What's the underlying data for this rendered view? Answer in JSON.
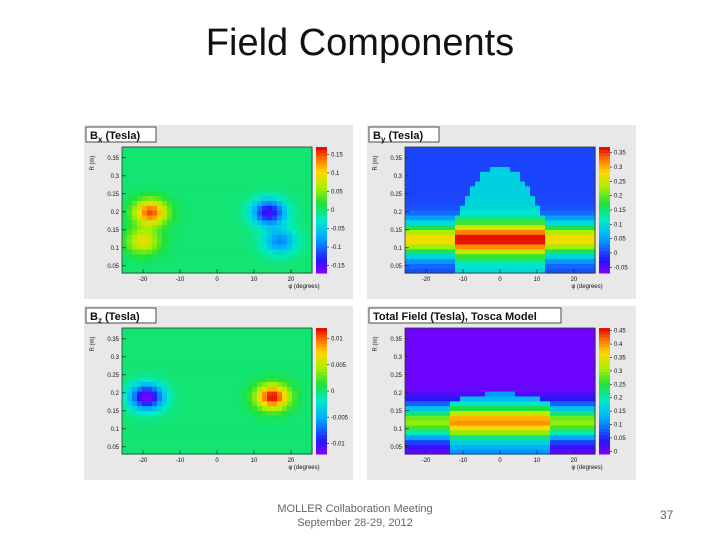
{
  "slide": {
    "title": "Field Components",
    "footer_line1": "MOLLER Collaboration Meeting",
    "footer_line2": "September 28-29, 2012",
    "page_number": "37"
  },
  "chart_data": [
    {
      "type": "heatmap",
      "title": "Bx (Tesla)",
      "title_parts": {
        "base": "B",
        "sub": "x",
        "rest": " (Tesla)"
      },
      "xlabel": "φ (degrees)",
      "ylabel": "R (m)",
      "x_range": [
        -25.7,
        25.7
      ],
      "y_range": [
        0.03,
        0.38
      ],
      "x_ticks": [
        -20,
        -10,
        0,
        10,
        20
      ],
      "y_ticks": [
        0.05,
        0.1,
        0.15,
        0.2,
        0.25,
        0.3,
        0.35
      ],
      "colorbar_range": [
        -0.17,
        0.17
      ],
      "colorbar_ticks": [
        0.15,
        0.1,
        0.05,
        0,
        -0.05,
        -0.1,
        -0.15
      ],
      "colorbar_labels": [
        "0.15",
        "0.1",
        "0.05",
        "0",
        "-0.05",
        "-0.1",
        "-0.15"
      ],
      "features": [
        {
          "kind": "blob",
          "phi": -18,
          "r": 0.2,
          "value": 0.15
        },
        {
          "kind": "blob",
          "phi": -20,
          "r": 0.12,
          "value": 0.09
        },
        {
          "kind": "blob",
          "phi": 14,
          "r": 0.2,
          "value": -0.15
        },
        {
          "kind": "blob",
          "phi": 17,
          "r": 0.12,
          "value": -0.09
        }
      ]
    },
    {
      "type": "heatmap",
      "title": "By (Tesla)",
      "title_parts": {
        "base": "B",
        "sub": "y",
        "rest": " (Tesla)"
      },
      "xlabel": "φ (degrees)",
      "ylabel": "R (m)",
      "x_range": [
        -25.7,
        25.7
      ],
      "y_range": [
        0.03,
        0.38
      ],
      "x_ticks": [
        -20,
        -10,
        0,
        10,
        20
      ],
      "y_ticks": [
        0.05,
        0.1,
        0.15,
        0.2,
        0.25,
        0.3,
        0.35
      ],
      "colorbar_range": [
        -0.07,
        0.37
      ],
      "colorbar_ticks": [
        0.35,
        0.3,
        0.25,
        0.2,
        0.15,
        0.1,
        0.05,
        0,
        -0.05
      ],
      "colorbar_labels": [
        "0.35",
        "0.3",
        "0.25",
        "0.2",
        "0.15",
        "0.1",
        "0.05",
        "0",
        "-0.05"
      ],
      "features": [
        {
          "kind": "band",
          "r": 0.125,
          "width": 0.045,
          "value": 0.28
        },
        {
          "kind": "arch",
          "phi": 0,
          "r_top": 0.33,
          "half_width": 12,
          "value": 0.09
        }
      ]
    },
    {
      "type": "heatmap",
      "title": "Bz (Tesla)",
      "title_parts": {
        "base": "B",
        "sub": "z",
        "rest": " (Tesla)"
      },
      "xlabel": "φ (degrees)",
      "ylabel": "R (m)",
      "x_range": [
        -25.7,
        25.7
      ],
      "y_range": [
        0.03,
        0.38
      ],
      "x_ticks": [
        -20,
        -10,
        0,
        10,
        20
      ],
      "y_ticks": [
        0.05,
        0.1,
        0.15,
        0.2,
        0.25,
        0.3,
        0.35
      ],
      "colorbar_range": [
        -0.012,
        0.012
      ],
      "colorbar_ticks": [
        0.01,
        0.005,
        0,
        -0.005,
        -0.01
      ],
      "colorbar_labels": [
        "0.01",
        "0.005",
        "0",
        "-0.005",
        "-0.01"
      ],
      "features": [
        {
          "kind": "blob",
          "phi": -19,
          "r": 0.19,
          "value": -0.012
        },
        {
          "kind": "blob",
          "phi": 15,
          "r": 0.19,
          "value": 0.012
        }
      ]
    },
    {
      "type": "heatmap",
      "title": "Total Field (Tesla), Tosca Model",
      "title_parts": {
        "base": "Total Field (Tesla), Tosca Model",
        "sub": "",
        "rest": ""
      },
      "xlabel": "φ (degrees)",
      "ylabel": "R (m)",
      "x_range": [
        -25.7,
        25.7
      ],
      "y_range": [
        0.03,
        0.38
      ],
      "x_ticks": [
        -20,
        -10,
        0,
        10,
        20
      ],
      "y_ticks": [
        0.05,
        0.1,
        0.15,
        0.2,
        0.25,
        0.3,
        0.35
      ],
      "colorbar_range": [
        -0.01,
        0.46
      ],
      "colorbar_ticks": [
        0.45,
        0.4,
        0.35,
        0.3,
        0.25,
        0.2,
        0.15,
        0.1,
        0.05,
        0
      ],
      "colorbar_labels": [
        "0.45",
        "0.4",
        "0.35",
        "0.3",
        "0.25",
        "0.2",
        "0.15",
        "0.1",
        "0.05",
        "0"
      ],
      "features": [
        {
          "kind": "band",
          "r": 0.12,
          "width": 0.045,
          "value": 0.3
        },
        {
          "kind": "arch",
          "phi": 0,
          "r_top": 0.2,
          "half_width": 13,
          "value": 0.1
        }
      ]
    }
  ]
}
